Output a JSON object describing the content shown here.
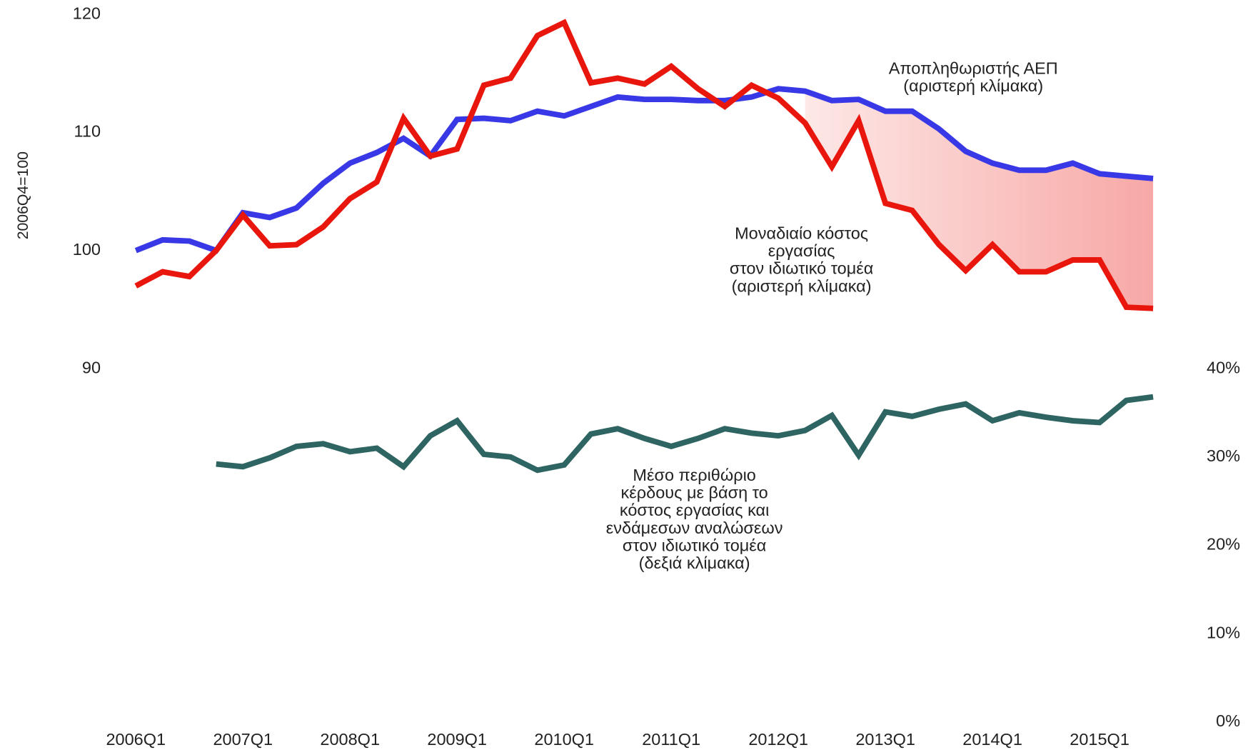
{
  "chart_data": {
    "type": "line",
    "y_label": "2006Q4=100",
    "categories": [
      "2006Q1",
      null,
      null,
      null,
      "2007Q1",
      null,
      null,
      null,
      "2008Q1",
      null,
      null,
      null,
      "2009Q1",
      null,
      null,
      null,
      "2010Q1",
      null,
      null,
      null,
      "2011Q1",
      null,
      null,
      null,
      "2012Q1",
      null,
      null,
      null,
      "2013Q1",
      null,
      null,
      null,
      "2014Q1",
      null,
      null,
      null,
      "2015Q1",
      null,
      null
    ],
    "ylim": [
      90,
      120
    ],
    "yticks": [
      90,
      100,
      110,
      120
    ],
    "y2lim": [
      0,
      40
    ],
    "y2ticks": [
      {
        "value": 0,
        "label": "0%"
      },
      {
        "value": 10,
        "label": "10%"
      },
      {
        "value": 20,
        "label": "20%"
      },
      {
        "value": 30,
        "label": "30%"
      },
      {
        "value": 40,
        "label": "40%"
      }
    ],
    "shade_from_category": 25,
    "series": [
      {
        "name": [
          "Αποπληθωριστής ΑΕΠ",
          "(αριστερή κλίμακα)"
        ],
        "color": "#3838e6",
        "values": [
          100.0,
          100.9,
          100.8,
          100.0,
          103.2,
          102.8,
          103.6,
          105.7,
          107.4,
          108.3,
          109.5,
          108.0,
          111.1,
          111.2,
          111.0,
          111.8,
          111.4,
          112.2,
          113.0,
          112.8,
          112.8,
          112.7,
          112.7,
          113.0,
          113.7,
          113.5,
          112.7,
          112.8,
          111.8,
          111.8,
          110.3,
          108.4,
          107.4,
          106.8,
          106.8,
          107.4,
          106.5,
          106.3,
          106.1
        ]
      },
      {
        "name": [
          "Μοναδιαίο κόστος",
          "εργασίας",
          "στον ιδιωτικό τομέα",
          "(αριστερή κλίμακα)"
        ],
        "color": "#e8160c",
        "values": [
          97.0,
          98.2,
          97.8,
          100.0,
          103.0,
          100.4,
          100.5,
          102.0,
          104.4,
          105.8,
          111.2,
          108.0,
          108.6,
          114.0,
          114.6,
          118.2,
          119.3,
          114.2,
          114.6,
          114.1,
          115.6,
          113.7,
          112.2,
          114.0,
          112.9,
          110.8,
          107.1,
          111.0,
          104.0,
          103.4,
          100.5,
          98.3,
          100.5,
          98.2,
          98.2,
          99.2,
          99.2,
          95.2,
          95.1
        ]
      },
      {
        "name": [
          "Μέσο περιθώριο",
          "κέρδους με βάση το",
          "κόστος εργασίας και",
          "ενδάμεσων αναλώσεων",
          "στον ιδιωτικό τομέα",
          "(δεξιά κλίμακα)"
        ],
        "color": "#2e6462",
        "axis": "y2",
        "values": [
          null,
          null,
          null,
          29.2,
          28.9,
          29.9,
          31.2,
          31.5,
          30.6,
          31.0,
          28.9,
          32.4,
          34.1,
          30.3,
          30.0,
          28.5,
          29.1,
          32.6,
          33.2,
          32.1,
          31.2,
          32.1,
          33.2,
          32.7,
          32.4,
          33.0,
          34.7,
          30.2,
          35.1,
          34.6,
          35.4,
          36.0,
          34.1,
          35.0,
          34.5,
          34.1,
          33.9,
          36.4,
          36.8
        ]
      }
    ]
  }
}
